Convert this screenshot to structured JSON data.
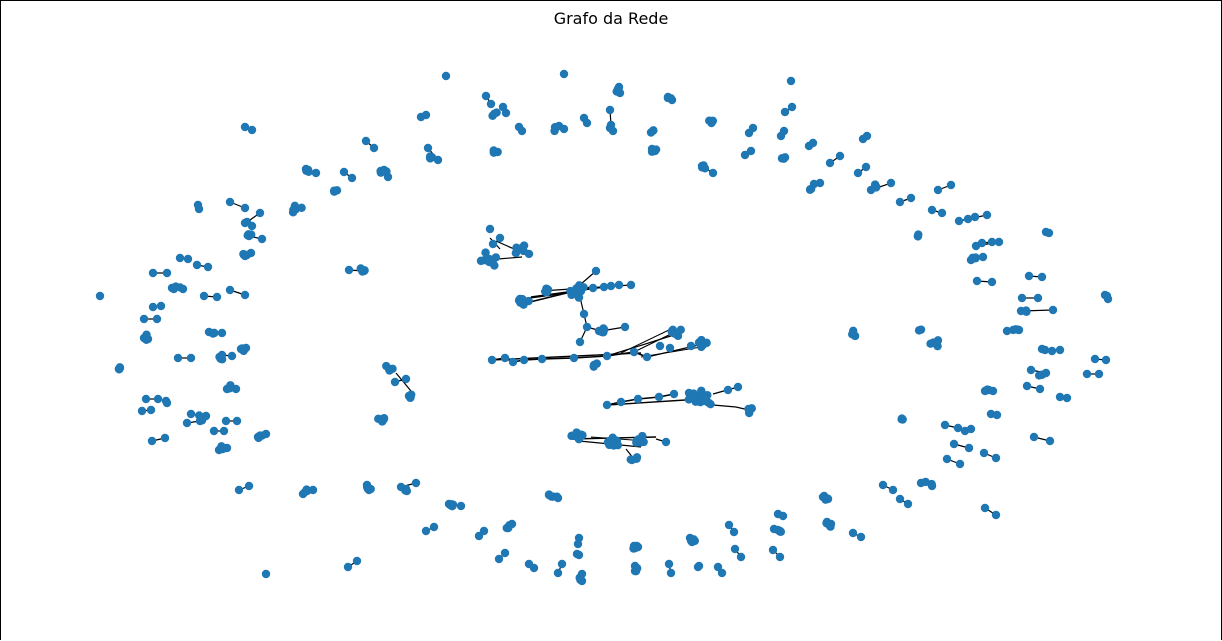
{
  "figure": {
    "title": "Grafo da Rede"
  },
  "style": {
    "node_color": "#1f77b4",
    "edge_color": "#000000",
    "background": "#ffffff"
  },
  "graph": {
    "layout": "spring",
    "labels_shown": false
  }
}
